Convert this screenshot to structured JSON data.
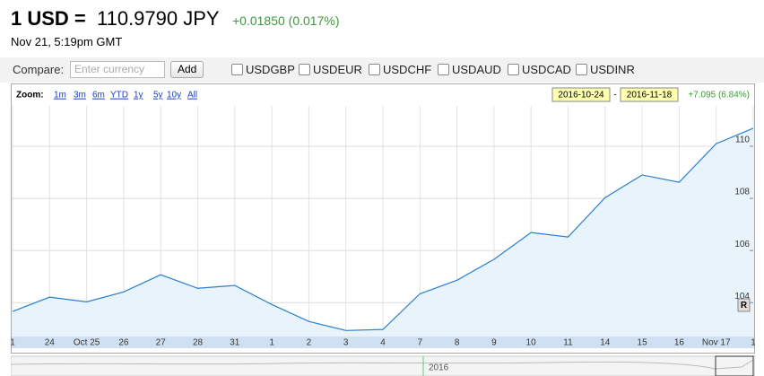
{
  "header": {
    "pair": "1 USD =",
    "price": "110.9790 JPY",
    "change": "+0.01850 (0.017%)",
    "timestamp": "Nov 21, 5:19pm GMT"
  },
  "compare": {
    "label": "Compare:",
    "placeholder": "Enter currency",
    "button": "Add",
    "options": [
      "USDGBP",
      "USDEUR",
      "USDCHF",
      "USDAUD",
      "USDCAD",
      "USDINR"
    ]
  },
  "zoom": {
    "label": "Zoom:",
    "options": [
      "1m",
      "3m",
      "6m",
      "YTD",
      "1y",
      "5y",
      "10y",
      "All"
    ],
    "start": "2016-10-24",
    "separator": "-",
    "end": "2016-11-18",
    "range_change": "+7.095 (6.84%)"
  },
  "chart_data": {
    "type": "line",
    "color": "#2a7fd0",
    "categories": [
      "1",
      "24",
      "Oct 25",
      "26",
      "27",
      "28",
      "31",
      "1",
      "2",
      "3",
      "4",
      "7",
      "8",
      "9",
      "10",
      "11",
      "14",
      "15",
      "16",
      "Nov 17",
      "1"
    ],
    "values": [
      103.66,
      104.21,
      104.03,
      104.41,
      105.07,
      104.55,
      104.66,
      103.93,
      103.28,
      102.93,
      102.97,
      104.34,
      104.86,
      105.66,
      106.69,
      106.52,
      108.03,
      108.9,
      108.62,
      110.1,
      110.69
    ],
    "ylim": [
      102.7,
      111.55
    ],
    "yticks": [
      104,
      106,
      108,
      110
    ],
    "grid": true,
    "marker": "R",
    "navigator_label": "2016"
  }
}
